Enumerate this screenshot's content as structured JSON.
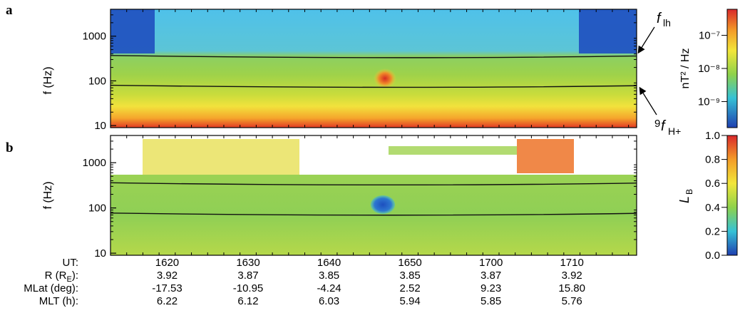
{
  "chart_data": [
    {
      "panel_label": "a",
      "type": "heatmap",
      "ylabel": "f (Hz)",
      "y_scale": "log",
      "ylim": [
        9,
        4000
      ],
      "y_ticks": [
        "10",
        "100",
        "1000"
      ],
      "x_ticks": [
        "1620",
        "1630",
        "1640",
        "1650",
        "1700",
        "1710"
      ],
      "colorbar": {
        "label": "nT² / Hz",
        "scale": "log",
        "ticks": [
          "10⁻⁷",
          "10⁻⁸",
          "10⁻⁹"
        ]
      },
      "annotations": [
        "f_lh",
        "9f_H+"
      ],
      "line_traces": [
        {
          "x": [
            "1613",
            "1648",
            "1718"
          ],
          "y": [
            370,
            335,
            360
          ]
        },
        {
          "x": [
            "1613",
            "1648",
            "1718"
          ],
          "y": [
            80,
            73,
            78
          ]
        }
      ]
    },
    {
      "panel_label": "b",
      "type": "heatmap",
      "ylabel": "f (Hz)",
      "y_scale": "log",
      "ylim": [
        9,
        4000
      ],
      "y_ticks": [
        "10",
        "100",
        "1000"
      ],
      "x_ticks": [
        "1620",
        "1630",
        "1640",
        "1650",
        "1700",
        "1710"
      ],
      "colorbar": {
        "label": "L_B",
        "range": [
          0.0,
          1.0
        ],
        "ticks": [
          "1.0",
          "0.8",
          "0.6",
          "0.4",
          "0.2",
          "0.0"
        ]
      },
      "line_traces": [
        {
          "x": [
            "1613",
            "1648",
            "1718"
          ],
          "y": [
            360,
            325,
            355
          ]
        },
        {
          "x": [
            "1613",
            "1648",
            "1718"
          ],
          "y": [
            77,
            70,
            76
          ]
        }
      ]
    }
  ],
  "footer": {
    "rows": [
      {
        "label": "UT:",
        "values": [
          "1620",
          "1630",
          "1640",
          "1650",
          "1700",
          "1710"
        ]
      },
      {
        "label_main": "R (R",
        "label_sub": "E",
        "label_tail": "):",
        "values": [
          "3.92",
          "3.87",
          "3.85",
          "3.85",
          "3.87",
          "3.92"
        ]
      },
      {
        "label": "MLat (deg):",
        "values": [
          "-17.53",
          "-10.95",
          "-4.24",
          "2.52",
          "9.23",
          "15.80"
        ]
      },
      {
        "label": "MLT (h):",
        "values": [
          "6.22",
          "6.12",
          "6.03",
          "5.94",
          "5.85",
          "5.76"
        ]
      }
    ]
  },
  "colors": {
    "line": "#111111",
    "arrow": "#000000"
  }
}
